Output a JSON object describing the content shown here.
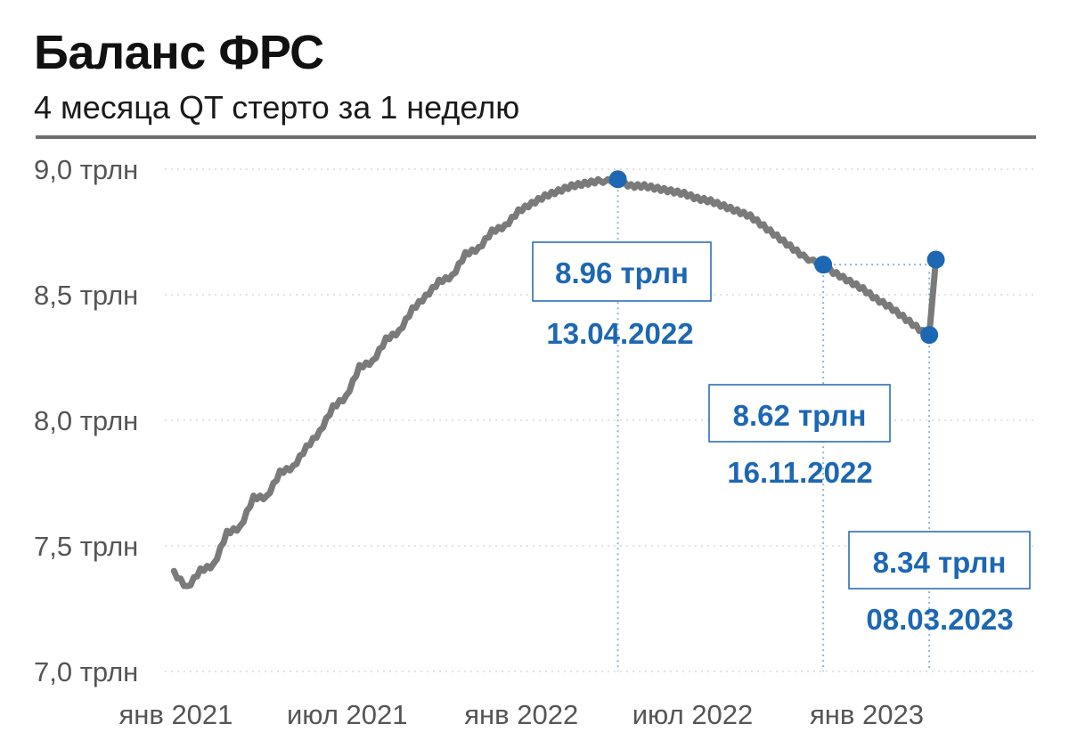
{
  "header": {
    "title": "Баланс ФРС",
    "subtitle": "4 месяца QT стерто за 1 неделю"
  },
  "colors": {
    "line": "#7a7a7a",
    "accent": "#1d67b3",
    "grid": "#d9d9d9",
    "guide": "#8ab4dc"
  },
  "chart_data": {
    "type": "line",
    "title": "Баланс ФРС",
    "subtitle": "4 месяца QT стерто за 1 неделю",
    "xlabel": "",
    "ylabel": "",
    "ylim": [
      7.0,
      9.0
    ],
    "grid": true,
    "y_ticks": [
      "9,0 трлн",
      "8,5 трлн",
      "8,0 трлн",
      "7,5 трлн",
      "7,0 трлн"
    ],
    "y_tick_values": [
      9.0,
      8.5,
      8.0,
      7.5,
      7.0
    ],
    "x_ticks": [
      "янв 2021",
      "июл 2021",
      "янв 2022",
      "июл 2022",
      "янв 2023"
    ],
    "x_tick_values": [
      "2021-01",
      "2021-07",
      "2022-01",
      "2022-07",
      "2023-01"
    ],
    "series": [
      {
        "x": [
          "2020-12-30",
          "2021-01-13",
          "2021-01-27",
          "2021-02-10",
          "2021-02-24",
          "2021-03-10",
          "2021-03-24",
          "2021-04-07",
          "2021-04-21",
          "2021-05-05",
          "2021-05-19",
          "2021-06-02",
          "2021-06-16",
          "2021-06-30",
          "2021-07-14",
          "2021-07-28",
          "2021-08-11",
          "2021-08-25",
          "2021-09-08",
          "2021-09-22",
          "2021-10-06",
          "2021-10-20",
          "2021-11-03",
          "2021-11-17",
          "2021-12-01",
          "2021-12-15",
          "2021-12-29",
          "2022-01-12",
          "2022-01-26",
          "2022-02-09",
          "2022-02-23",
          "2022-03-09",
          "2022-03-23",
          "2022-04-13",
          "2022-04-27",
          "2022-05-11",
          "2022-05-25",
          "2022-06-08",
          "2022-06-22",
          "2022-07-06",
          "2022-07-20",
          "2022-08-03",
          "2022-08-17",
          "2022-08-31",
          "2022-09-14",
          "2022-09-28",
          "2022-10-12",
          "2022-10-26",
          "2022-11-16",
          "2022-11-30",
          "2022-12-14",
          "2022-12-28",
          "2023-01-11",
          "2023-01-25",
          "2023-02-08",
          "2023-02-22",
          "2023-03-08",
          "2023-03-15"
        ],
        "values": [
          7.4,
          7.34,
          7.41,
          7.43,
          7.56,
          7.58,
          7.7,
          7.7,
          7.8,
          7.82,
          7.9,
          7.96,
          8.06,
          8.1,
          8.22,
          8.24,
          8.33,
          8.36,
          8.45,
          8.5,
          8.56,
          8.58,
          8.67,
          8.69,
          8.76,
          8.78,
          8.84,
          8.87,
          8.9,
          8.92,
          8.94,
          8.95,
          8.96,
          8.96,
          8.94,
          8.94,
          8.93,
          8.92,
          8.91,
          8.89,
          8.88,
          8.86,
          8.84,
          8.82,
          8.78,
          8.74,
          8.7,
          8.66,
          8.62,
          8.59,
          8.56,
          8.53,
          8.49,
          8.46,
          8.42,
          8.38,
          8.34,
          8.64
        ]
      }
    ],
    "highlights": [
      {
        "x": "2022-04-13",
        "value": 8.96,
        "label": "8.96 трлн",
        "date": "13.04.2022"
      },
      {
        "x": "2022-11-16",
        "value": 8.62,
        "label": "8.62 трлн",
        "date": "16.11.2022"
      },
      {
        "x": "2023-03-08",
        "value": 8.34,
        "label": "8.34 трлн",
        "date": "08.03.2023"
      },
      {
        "x": "2023-03-15",
        "value": 8.64
      }
    ]
  }
}
